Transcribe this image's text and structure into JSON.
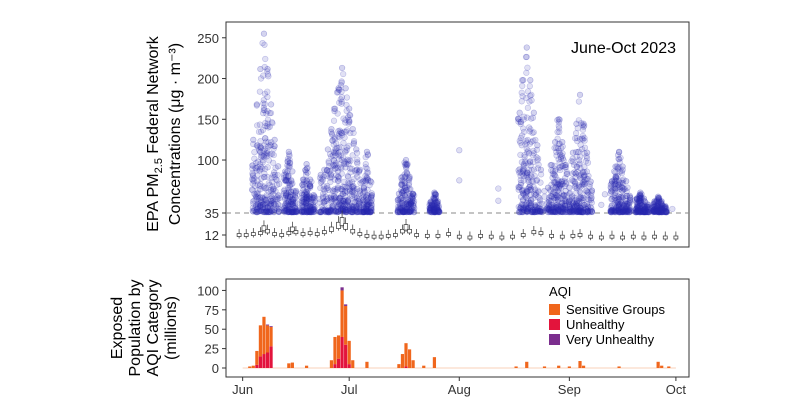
{
  "chart_data": [
    {
      "type": "scatter",
      "annotation": "June-Oct 2023",
      "ylabel_line1_pre": "EPA PM",
      "ylabel_line1_sub": "2.5",
      "ylabel_line1_post": " Federal Network",
      "ylabel_line2": "Concentrations (μg · m⁻³)",
      "yticks": [
        12,
        35,
        100,
        150,
        200,
        250
      ],
      "ylim": [
        0,
        262
      ],
      "threshold": 35,
      "xlim": [
        "2023-05-29",
        "2023-10-03"
      ],
      "colors": {
        "points": "#2a2ab0",
        "box": "#333333",
        "dash": "#8a8a8a"
      },
      "bursts": [
        {
          "start": "2023-06-04",
          "end": "2023-06-11",
          "peak_day": "2023-06-07",
          "max": 255
        },
        {
          "start": "2023-06-13",
          "end": "2023-06-16",
          "peak_day": "2023-06-14",
          "max": 110
        },
        {
          "start": "2023-06-18",
          "end": "2023-06-21",
          "peak_day": "2023-06-19",
          "max": 95
        },
        {
          "start": "2023-06-23",
          "end": "2023-07-04",
          "peak_day": "2023-06-29",
          "max": 213
        },
        {
          "start": "2023-07-05",
          "end": "2023-07-07",
          "peak_day": "2023-07-06",
          "max": 110
        },
        {
          "start": "2023-07-15",
          "end": "2023-07-19",
          "peak_day": "2023-07-17",
          "max": 100
        },
        {
          "start": "2023-07-24",
          "end": "2023-07-26",
          "peak_day": "2023-07-25",
          "max": 60
        },
        {
          "start": "2023-08-18",
          "end": "2023-08-24",
          "peak_day": "2023-08-20",
          "max": 238
        },
        {
          "start": "2023-08-26",
          "end": "2023-09-01",
          "peak_day": "2023-08-29",
          "max": 150
        },
        {
          "start": "2023-09-02",
          "end": "2023-09-07",
          "peak_day": "2023-09-04",
          "max": 180
        },
        {
          "start": "2023-09-13",
          "end": "2023-09-18",
          "peak_day": "2023-09-15",
          "max": 110
        },
        {
          "start": "2023-09-20",
          "end": "2023-09-23",
          "peak_day": "2023-09-21",
          "max": 60
        },
        {
          "start": "2023-09-25",
          "end": "2023-09-28",
          "peak_day": "2023-09-26",
          "max": 55
        }
      ],
      "scattered_points": [
        {
          "x": "2023-08-01",
          "y": 112
        },
        {
          "x": "2023-08-01",
          "y": 75
        },
        {
          "x": "2023-08-12",
          "y": 65
        },
        {
          "x": "2023-08-12",
          "y": 50
        },
        {
          "x": "2023-08-25",
          "y": 62
        },
        {
          "x": "2023-08-25",
          "y": 55
        },
        {
          "x": "2023-09-10",
          "y": 45
        },
        {
          "x": "2023-09-11",
          "y": 58
        },
        {
          "x": "2023-09-30",
          "y": 40
        }
      ],
      "median_series": [
        [
          "2023-05-31",
          12
        ],
        [
          "2023-06-02",
          12
        ],
        [
          "2023-06-04",
          13
        ],
        [
          "2023-06-06",
          14
        ],
        [
          "2023-06-07",
          19
        ],
        [
          "2023-06-08",
          16
        ],
        [
          "2023-06-10",
          13
        ],
        [
          "2023-06-12",
          12
        ],
        [
          "2023-06-14",
          14
        ],
        [
          "2023-06-15",
          18
        ],
        [
          "2023-06-16",
          15
        ],
        [
          "2023-06-18",
          13
        ],
        [
          "2023-06-20",
          14
        ],
        [
          "2023-06-22",
          13
        ],
        [
          "2023-06-24",
          15
        ],
        [
          "2023-06-26",
          18
        ],
        [
          "2023-06-28",
          22
        ],
        [
          "2023-06-29",
          26
        ],
        [
          "2023-06-30",
          21
        ],
        [
          "2023-07-02",
          16
        ],
        [
          "2023-07-04",
          13
        ],
        [
          "2023-07-06",
          11
        ],
        [
          "2023-07-08",
          10
        ],
        [
          "2023-07-10",
          10
        ],
        [
          "2023-07-12",
          11
        ],
        [
          "2023-07-14",
          12
        ],
        [
          "2023-07-16",
          16
        ],
        [
          "2023-07-17",
          20
        ],
        [
          "2023-07-18",
          16
        ],
        [
          "2023-07-20",
          12
        ],
        [
          "2023-07-23",
          11
        ],
        [
          "2023-07-26",
          11
        ],
        [
          "2023-07-29",
          13
        ],
        [
          "2023-08-01",
          10
        ],
        [
          "2023-08-04",
          9
        ],
        [
          "2023-08-07",
          11
        ],
        [
          "2023-08-10",
          10
        ],
        [
          "2023-08-13",
          9
        ],
        [
          "2023-08-16",
          10
        ],
        [
          "2023-08-19",
          12
        ],
        [
          "2023-08-22",
          15
        ],
        [
          "2023-08-24",
          14
        ],
        [
          "2023-08-27",
          11
        ],
        [
          "2023-08-30",
          10
        ],
        [
          "2023-09-02",
          11
        ],
        [
          "2023-09-04",
          12
        ],
        [
          "2023-09-07",
          10
        ],
        [
          "2023-09-10",
          9
        ],
        [
          "2023-09-13",
          10
        ],
        [
          "2023-09-16",
          9
        ],
        [
          "2023-09-19",
          10
        ],
        [
          "2023-09-22",
          9
        ],
        [
          "2023-09-25",
          10
        ],
        [
          "2023-09-28",
          9
        ],
        [
          "2023-10-01",
          9
        ]
      ]
    },
    {
      "type": "bar",
      "stacked": true,
      "ylabel_lines": [
        "Exposed",
        "Population by",
        "AQI Category",
        "(millions)"
      ],
      "yticks": [
        0,
        25,
        50,
        75,
        100
      ],
      "ylim": [
        0,
        107
      ],
      "xlim": [
        "2023-05-29",
        "2023-10-03"
      ],
      "xticks": [
        {
          "label": "Jun",
          "date": "2023-06-01"
        },
        {
          "label": "Jul",
          "date": "2023-07-01"
        },
        {
          "label": "Aug",
          "date": "2023-08-01"
        },
        {
          "label": "Sep",
          "date": "2023-09-01"
        },
        {
          "label": "Oct",
          "date": "2023-10-01"
        }
      ],
      "legend": {
        "title": "AQI",
        "position": "right",
        "items": [
          {
            "key": "sg",
            "name": "Sensitive Groups",
            "color": "#f0661c"
          },
          {
            "key": "uh",
            "name": "Unhealthy",
            "color": "#e3143c"
          },
          {
            "key": "vu",
            "name": "Very Unhealthy",
            "color": "#7b2e8e"
          }
        ]
      },
      "bars": [
        {
          "date": "2023-06-03",
          "sg": 2,
          "uh": 0,
          "vu": 0
        },
        {
          "date": "2023-06-04",
          "sg": 3,
          "uh": 0,
          "vu": 0
        },
        {
          "date": "2023-06-05",
          "sg": 18,
          "uh": 4,
          "vu": 0
        },
        {
          "date": "2023-06-06",
          "sg": 40,
          "uh": 15,
          "vu": 0
        },
        {
          "date": "2023-06-07",
          "sg": 48,
          "uh": 18,
          "vu": 0
        },
        {
          "date": "2023-06-08",
          "sg": 35,
          "uh": 20,
          "vu": 1
        },
        {
          "date": "2023-06-09",
          "sg": 25,
          "uh": 28,
          "vu": 1
        },
        {
          "date": "2023-06-14",
          "sg": 6,
          "uh": 0,
          "vu": 0
        },
        {
          "date": "2023-06-15",
          "sg": 7,
          "uh": 0,
          "vu": 0
        },
        {
          "date": "2023-06-19",
          "sg": 3,
          "uh": 0,
          "vu": 0
        },
        {
          "date": "2023-06-26",
          "sg": 10,
          "uh": 0,
          "vu": 0
        },
        {
          "date": "2023-06-27",
          "sg": 35,
          "uh": 5,
          "vu": 0
        },
        {
          "date": "2023-06-28",
          "sg": 30,
          "uh": 12,
          "vu": 0
        },
        {
          "date": "2023-06-29",
          "sg": 60,
          "uh": 40,
          "vu": 4
        },
        {
          "date": "2023-06-30",
          "sg": 50,
          "uh": 30,
          "vu": 2
        },
        {
          "date": "2023-07-01",
          "sg": 30,
          "uh": 5,
          "vu": 0
        },
        {
          "date": "2023-07-02",
          "sg": 10,
          "uh": 0,
          "vu": 0
        },
        {
          "date": "2023-07-06",
          "sg": 8,
          "uh": 0,
          "vu": 0
        },
        {
          "date": "2023-07-15",
          "sg": 5,
          "uh": 0,
          "vu": 0
        },
        {
          "date": "2023-07-16",
          "sg": 18,
          "uh": 0,
          "vu": 0
        },
        {
          "date": "2023-07-17",
          "sg": 30,
          "uh": 2,
          "vu": 0
        },
        {
          "date": "2023-07-18",
          "sg": 24,
          "uh": 0,
          "vu": 0
        },
        {
          "date": "2023-07-19",
          "sg": 10,
          "uh": 0,
          "vu": 0
        },
        {
          "date": "2023-07-22",
          "sg": 3,
          "uh": 0,
          "vu": 0
        },
        {
          "date": "2023-07-25",
          "sg": 14,
          "uh": 0,
          "vu": 0
        },
        {
          "date": "2023-08-17",
          "sg": 2,
          "uh": 0,
          "vu": 0
        },
        {
          "date": "2023-08-20",
          "sg": 8,
          "uh": 0,
          "vu": 0
        },
        {
          "date": "2023-08-25",
          "sg": 2,
          "uh": 0,
          "vu": 0
        },
        {
          "date": "2023-08-29",
          "sg": 3,
          "uh": 0,
          "vu": 0
        },
        {
          "date": "2023-09-01",
          "sg": 2,
          "uh": 0,
          "vu": 0
        },
        {
          "date": "2023-09-04",
          "sg": 9,
          "uh": 0,
          "vu": 0
        },
        {
          "date": "2023-09-05",
          "sg": 3,
          "uh": 0,
          "vu": 0
        },
        {
          "date": "2023-09-15",
          "sg": 2,
          "uh": 0,
          "vu": 0
        },
        {
          "date": "2023-09-26",
          "sg": 8,
          "uh": 0,
          "vu": 0
        },
        {
          "date": "2023-09-27",
          "sg": 3,
          "uh": 0,
          "vu": 0
        },
        {
          "date": "2023-09-29",
          "sg": 2,
          "uh": 0,
          "vu": 0
        }
      ]
    }
  ]
}
